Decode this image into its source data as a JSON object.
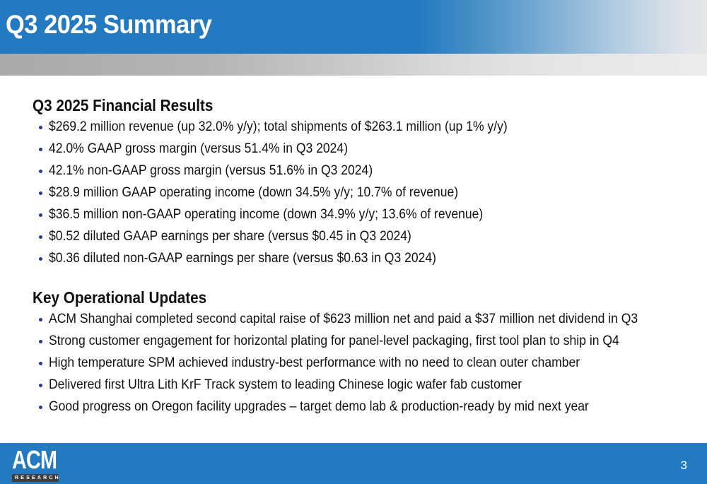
{
  "header": {
    "title": "Q3 2025 Summary"
  },
  "sections": [
    {
      "heading": "Q3 2025 Financial Results",
      "bullets": [
        "$269.2 million revenue (up 32.0% y/y); total shipments of $263.1 million (up 1% y/y)",
        "42.0% GAAP gross margin (versus 51.4% in Q3 2024)",
        "42.1% non-GAAP gross margin (versus 51.6% in Q3 2024)",
        "$28.9 million GAAP operating income (down 34.5% y/y; 10.7% of revenue)",
        "$36.5 million non-GAAP operating income (down 34.9% y/y; 13.6% of revenue)",
        "$0.52 diluted GAAP earnings per share (versus $0.45 in Q3 2024)",
        "$0.36 diluted non-GAAP earnings per share (versus $0.63 in Q3 2024)"
      ]
    },
    {
      "heading": "Key Operational Updates",
      "bullets": [
        "ACM Shanghai completed second capital raise of $623 million net and paid a $37 million net dividend in Q3",
        "Strong customer engagement for horizontal plating for panel-level packaging, first tool plan to ship in Q4",
        "High temperature SPM achieved industry-best performance with no need to clean outer chamber",
        "Delivered first Ultra Lith KrF Track system to leading Chinese logic wafer fab customer",
        "Good progress on Oregon facility upgrades – target demo lab & production-ready by mid next year"
      ]
    }
  ],
  "footer": {
    "logo_main": "ACM",
    "logo_sub": "RESEARCH",
    "page_number": "3"
  },
  "colors": {
    "brand_blue": "#237ac1",
    "bullet_blue": "#1f3a93",
    "logo_sub_bg": "#3f3f3f"
  }
}
